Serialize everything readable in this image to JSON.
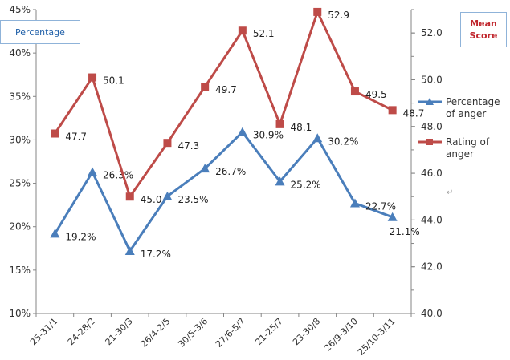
{
  "chart_data": {
    "type": "line",
    "categories": [
      "25-31/1",
      "24-28/2",
      "21-30/3",
      "26/4-2/5",
      "30/5-3/6",
      "27/6-5/7",
      "21-25/7",
      "23-30/8",
      "26/9-3/10",
      "25/10-3/11"
    ],
    "y_left": {
      "label": "Percentage",
      "ticks": [
        "10%",
        "15%",
        "20%",
        "25%",
        "30%",
        "35%",
        "40%",
        "45%"
      ],
      "range": [
        10,
        45
      ]
    },
    "y_right": {
      "label_line1": "Mean",
      "label_line2": "Score",
      "ticks": [
        "40.0",
        "42.0",
        "44.0",
        "46.0",
        "48.0",
        "50.0",
        "52.0"
      ],
      "range": [
        40,
        53
      ]
    },
    "series": [
      {
        "name_line1": "Percentage",
        "name_line2": "of anger",
        "axis": "left",
        "color": "#4a7ebb",
        "marker": "triangle",
        "values": [
          19.2,
          26.3,
          17.2,
          23.5,
          26.7,
          30.9,
          25.2,
          30.2,
          22.7,
          21.1
        ],
        "labels": [
          "19.2%",
          "26.3%",
          "17.2%",
          "23.5%",
          "26.7%",
          "30.9%",
          "25.2%",
          "30.2%",
          "22.7%",
          "21.1%"
        ]
      },
      {
        "name_line1": "Rating of",
        "name_line2": "anger",
        "axis": "right",
        "color": "#be4b48",
        "marker": "square",
        "values": [
          47.7,
          50.1,
          45.0,
          47.3,
          49.7,
          52.1,
          48.1,
          52.9,
          49.5,
          48.7
        ],
        "labels": [
          "47.7",
          "50.1",
          "45.0",
          "47.3",
          "49.7",
          "52.1",
          "48.1",
          "52.9",
          "49.5",
          "48.7"
        ]
      }
    ],
    "grid": false,
    "legend_position": "right"
  },
  "stray_mark": "↵"
}
